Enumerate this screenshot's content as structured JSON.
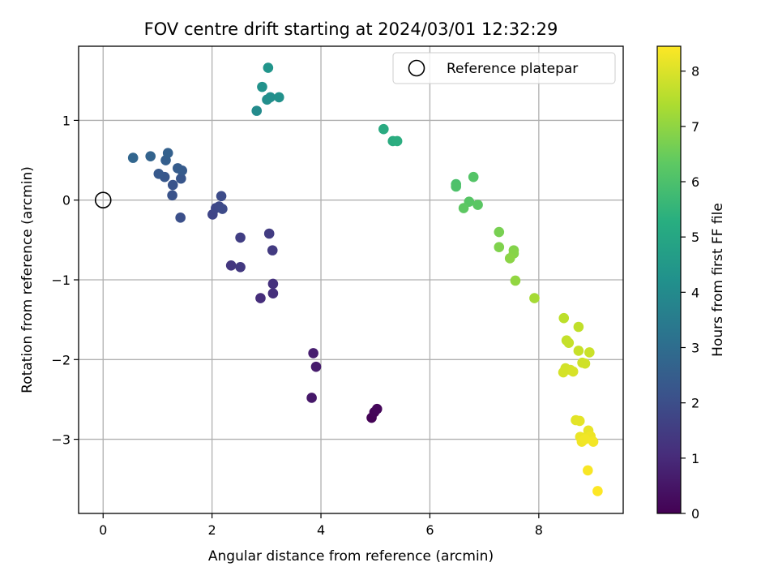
{
  "chart_data": {
    "type": "scatter",
    "title": "FOV centre drift starting at 2024/03/01 12:32:29",
    "xlabel": "Angular distance from reference (arcmin)",
    "ylabel": "Rotation from reference (arcmin)",
    "xlim": [
      -0.45,
      9.55
    ],
    "ylim": [
      -3.93,
      1.93
    ],
    "xticks": [
      0,
      2,
      4,
      6,
      8
    ],
    "yticks": [
      -3,
      -2,
      -1,
      0,
      1
    ],
    "xtick_labels": [
      "0",
      "2",
      "4",
      "6",
      "8"
    ],
    "ytick_labels": [
      "−3",
      "−2",
      "−1",
      "0",
      "1"
    ],
    "grid": true,
    "legend": {
      "position": "top-right",
      "entries": [
        "Reference platepar"
      ]
    },
    "reference_point": {
      "x": 0,
      "y": 0,
      "label": "Reference platepar"
    },
    "colorbar": {
      "label": "Hours from first FF file",
      "colormap": "viridis",
      "range": [
        0,
        8.45
      ],
      "ticks": [
        0,
        1,
        2,
        3,
        4,
        5,
        6,
        7,
        8
      ],
      "tick_labels": [
        "0",
        "1",
        "2",
        "3",
        "4",
        "5",
        "6",
        "7",
        "8"
      ]
    },
    "points": [
      {
        "x": 4.93,
        "y": -2.73,
        "t": 0.05
      },
      {
        "x": 4.98,
        "y": -2.66,
        "t": 0.1
      },
      {
        "x": 5.03,
        "y": -2.62,
        "t": 0.15
      },
      {
        "x": 3.83,
        "y": -2.48,
        "t": 0.55
      },
      {
        "x": 3.91,
        "y": -2.09,
        "t": 0.65
      },
      {
        "x": 3.86,
        "y": -1.92,
        "t": 0.7
      },
      {
        "x": 2.89,
        "y": -1.23,
        "t": 1.1
      },
      {
        "x": 3.12,
        "y": -1.17,
        "t": 1.15
      },
      {
        "x": 3.12,
        "y": -1.05,
        "t": 1.2
      },
      {
        "x": 2.35,
        "y": -0.82,
        "t": 1.35
      },
      {
        "x": 2.52,
        "y": -0.84,
        "t": 1.4
      },
      {
        "x": 3.11,
        "y": -0.63,
        "t": 1.45
      },
      {
        "x": 3.05,
        "y": -0.42,
        "t": 1.5
      },
      {
        "x": 2.52,
        "y": -0.47,
        "t": 1.55
      },
      {
        "x": 2.01,
        "y": -0.18,
        "t": 1.75
      },
      {
        "x": 2.07,
        "y": -0.1,
        "t": 1.8
      },
      {
        "x": 2.13,
        "y": -0.08,
        "t": 1.85
      },
      {
        "x": 2.19,
        "y": -0.11,
        "t": 1.9
      },
      {
        "x": 2.17,
        "y": 0.05,
        "t": 1.95
      },
      {
        "x": 1.42,
        "y": -0.22,
        "t": 2.05
      },
      {
        "x": 1.27,
        "y": 0.06,
        "t": 2.15
      },
      {
        "x": 1.28,
        "y": 0.19,
        "t": 2.2
      },
      {
        "x": 1.43,
        "y": 0.27,
        "t": 2.25
      },
      {
        "x": 1.13,
        "y": 0.29,
        "t": 2.3
      },
      {
        "x": 1.02,
        "y": 0.33,
        "t": 2.35
      },
      {
        "x": 1.45,
        "y": 0.37,
        "t": 2.4
      },
      {
        "x": 1.37,
        "y": 0.4,
        "t": 2.45
      },
      {
        "x": 1.15,
        "y": 0.5,
        "t": 2.55
      },
      {
        "x": 0.87,
        "y": 0.55,
        "t": 2.65
      },
      {
        "x": 0.55,
        "y": 0.53,
        "t": 2.75
      },
      {
        "x": 1.19,
        "y": 0.59,
        "t": 2.6
      },
      {
        "x": 2.82,
        "y": 1.12,
        "t": 4.05
      },
      {
        "x": 3.01,
        "y": 1.26,
        "t": 4.15
      },
      {
        "x": 3.07,
        "y": 1.29,
        "t": 4.2
      },
      {
        "x": 3.23,
        "y": 1.29,
        "t": 4.25
      },
      {
        "x": 2.92,
        "y": 1.42,
        "t": 4.3
      },
      {
        "x": 3.03,
        "y": 1.66,
        "t": 4.4
      },
      {
        "x": 5.15,
        "y": 0.89,
        "t": 5.15
      },
      {
        "x": 5.32,
        "y": 0.74,
        "t": 5.2
      },
      {
        "x": 5.4,
        "y": 0.74,
        "t": 5.25
      },
      {
        "x": 6.48,
        "y": 0.2,
        "t": 6.0
      },
      {
        "x": 6.48,
        "y": 0.17,
        "t": 6.05
      },
      {
        "x": 6.8,
        "y": 0.29,
        "t": 6.15
      },
      {
        "x": 6.72,
        "y": -0.02,
        "t": 6.2
      },
      {
        "x": 6.88,
        "y": -0.06,
        "t": 6.25
      },
      {
        "x": 6.62,
        "y": -0.1,
        "t": 6.3
      },
      {
        "x": 7.27,
        "y": -0.4,
        "t": 6.7
      },
      {
        "x": 7.27,
        "y": -0.59,
        "t": 6.8
      },
      {
        "x": 7.54,
        "y": -0.63,
        "t": 6.85
      },
      {
        "x": 7.54,
        "y": -0.67,
        "t": 6.9
      },
      {
        "x": 7.47,
        "y": -0.73,
        "t": 6.95
      },
      {
        "x": 7.57,
        "y": -1.01,
        "t": 7.05
      },
      {
        "x": 7.92,
        "y": -1.23,
        "t": 7.3
      },
      {
        "x": 8.46,
        "y": -1.48,
        "t": 7.6
      },
      {
        "x": 8.73,
        "y": -1.59,
        "t": 7.65
      },
      {
        "x": 8.51,
        "y": -1.76,
        "t": 7.7
      },
      {
        "x": 8.55,
        "y": -1.79,
        "t": 7.72
      },
      {
        "x": 8.73,
        "y": -1.89,
        "t": 7.75
      },
      {
        "x": 8.93,
        "y": -1.91,
        "t": 7.78
      },
      {
        "x": 8.8,
        "y": -2.04,
        "t": 7.82
      },
      {
        "x": 8.85,
        "y": -2.05,
        "t": 7.85
      },
      {
        "x": 8.49,
        "y": -2.11,
        "t": 7.88
      },
      {
        "x": 8.58,
        "y": -2.13,
        "t": 7.9
      },
      {
        "x": 8.45,
        "y": -2.16,
        "t": 7.92
      },
      {
        "x": 8.63,
        "y": -2.15,
        "t": 7.95
      },
      {
        "x": 8.68,
        "y": -2.76,
        "t": 8.1
      },
      {
        "x": 8.75,
        "y": -2.77,
        "t": 8.12
      },
      {
        "x": 8.91,
        "y": -2.89,
        "t": 8.18
      },
      {
        "x": 8.76,
        "y": -2.97,
        "t": 8.2
      },
      {
        "x": 8.83,
        "y": -2.98,
        "t": 8.22
      },
      {
        "x": 8.95,
        "y": -2.96,
        "t": 8.25
      },
      {
        "x": 8.79,
        "y": -3.03,
        "t": 8.28
      },
      {
        "x": 8.85,
        "y": -3.0,
        "t": 8.3
      },
      {
        "x": 9.0,
        "y": -3.03,
        "t": 8.32
      },
      {
        "x": 8.9,
        "y": -3.39,
        "t": 8.38
      },
      {
        "x": 9.08,
        "y": -3.65,
        "t": 8.45
      }
    ]
  }
}
